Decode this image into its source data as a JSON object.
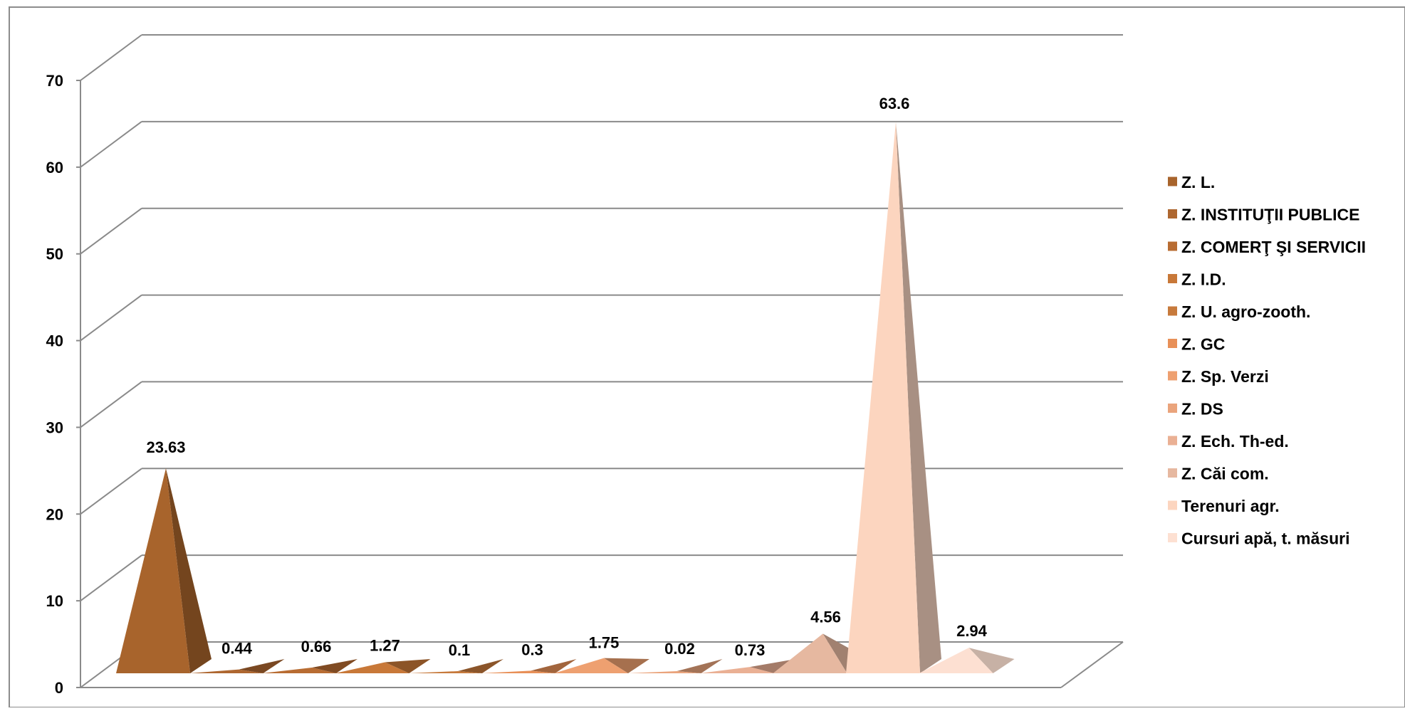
{
  "chart_data": {
    "type": "3d-pyramid-column",
    "ylim": [
      0,
      70
    ],
    "yticks": [
      0,
      10,
      20,
      30,
      40,
      50,
      60,
      70
    ],
    "grid": true,
    "legend_position": "right",
    "categories": [
      "Z. L.",
      "Z. INSTITUŢII PUBLICE",
      "Z. COMERŢ ŞI SERVICII",
      "Z. I.D.",
      "Z. U. agro-zooth.",
      "Z. GC",
      "Z. Sp. Verzi",
      "Z. DS",
      "Z. Ech. Th-ed.",
      "Z. Căi com.",
      "Terenuri agr.",
      "Cursuri apă, t. măsuri"
    ],
    "values": [
      23.63,
      0.44,
      0.66,
      1.27,
      0.1,
      0.3,
      1.75,
      0.02,
      0.73,
      4.56,
      63.6,
      2.94
    ],
    "labels": [
      "23.63",
      "0.44",
      "0.66",
      "1.27",
      "0.1",
      "0.3",
      "1.75",
      "0.02",
      "0.73",
      "4.56",
      "63.6",
      "2.94"
    ],
    "colors": [
      "#a8642c",
      "#ae6730",
      "#b86c32",
      "#c87838",
      "#c77a3c",
      "#e89058",
      "#eea070",
      "#eaa47c",
      "#eab094",
      "#e6b8a0",
      "#fcd5bf",
      "#fde0d2"
    ],
    "colors_dark": [
      "#74451e",
      "#7a4822",
      "#804b23",
      "#8c5427",
      "#8b552a",
      "#a2653d",
      "#a6704e",
      "#a37357",
      "#a47b68",
      "#a18170",
      "#a89083",
      "#c7b1a5"
    ]
  }
}
